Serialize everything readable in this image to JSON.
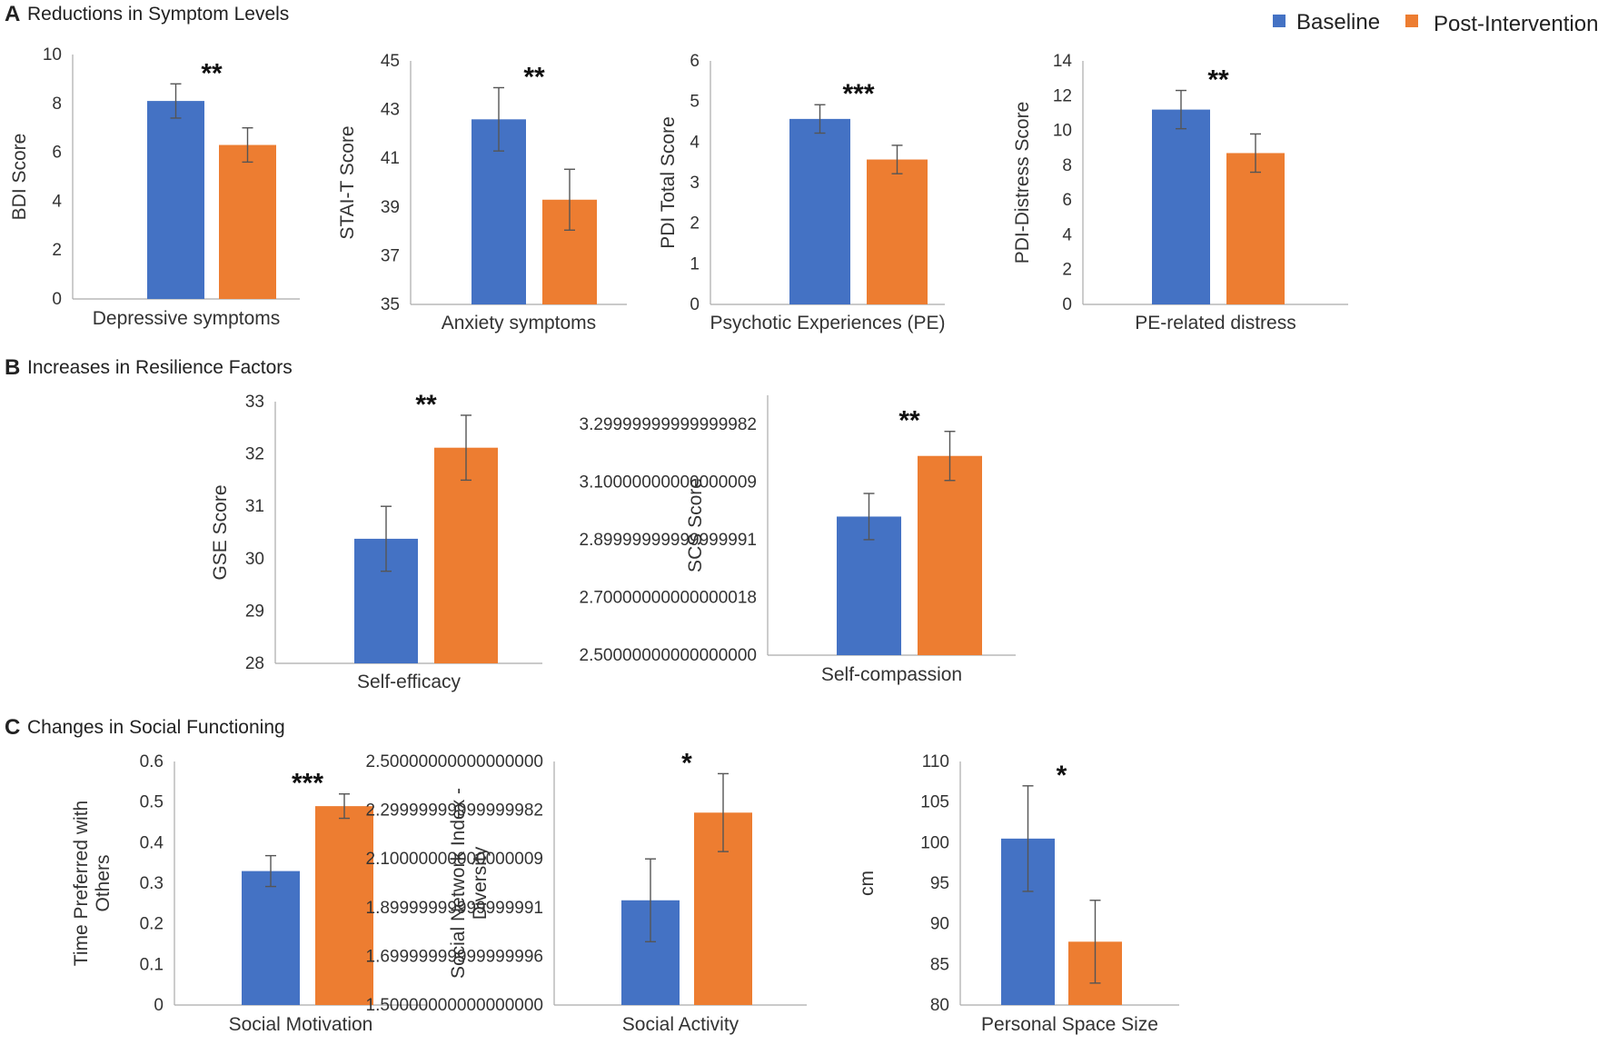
{
  "legend": {
    "baseline_label": "Baseline",
    "post_label": "Post-Intervention",
    "position": "top-right"
  },
  "colors": {
    "baseline": "#4472C4",
    "post": "#ED7D31",
    "axis": "#aaaaaa",
    "errorbar": "#555555",
    "text": "#222222"
  },
  "sections": [
    {
      "letter": "A",
      "title": "Reductions in Symptom Levels"
    },
    {
      "letter": "B",
      "title": "Increases in Resilience Factors"
    },
    {
      "letter": "C",
      "title": "Changes in Social Functioning"
    }
  ],
  "chart_data": [
    {
      "type": "bar",
      "section": "A",
      "xlabel": "Depressive symptoms",
      "ylabel": "BDI Score",
      "ylim": [
        0,
        10
      ],
      "ticks": [
        0,
        2,
        4,
        6,
        8,
        10
      ],
      "series": [
        {
          "name": "Baseline",
          "value": 8.1,
          "error": 0.7
        },
        {
          "name": "Post-Intervention",
          "value": 6.3,
          "error": 0.7
        }
      ],
      "significance": "**"
    },
    {
      "type": "bar",
      "section": "A",
      "xlabel": "Anxiety symptoms",
      "ylabel": "STAI-T Score",
      "ylim": [
        35,
        45
      ],
      "ticks": [
        35,
        37,
        39,
        41,
        43,
        45
      ],
      "series": [
        {
          "name": "Baseline",
          "value": 42.6,
          "error": 1.3
        },
        {
          "name": "Post-Intervention",
          "value": 39.3,
          "error": 1.25
        }
      ],
      "significance": "**"
    },
    {
      "type": "bar",
      "section": "A",
      "xlabel": "Psychotic Experiences (PE)",
      "ylabel": "PDI Total Score",
      "ylim": [
        0,
        6
      ],
      "ticks": [
        0,
        1,
        2,
        3,
        4,
        5,
        6
      ],
      "series": [
        {
          "name": "Baseline",
          "value": 4.57,
          "error": 0.35
        },
        {
          "name": "Post-Intervention",
          "value": 3.57,
          "error": 0.35
        }
      ],
      "significance": "***"
    },
    {
      "type": "bar",
      "section": "A",
      "xlabel": "PE-related distress",
      "ylabel": "PDI-Distress Score",
      "ylim": [
        0,
        14
      ],
      "ticks": [
        0,
        2,
        4,
        6,
        8,
        10,
        12,
        14
      ],
      "series": [
        {
          "name": "Baseline",
          "value": 11.2,
          "error": 1.1
        },
        {
          "name": "Post-Intervention",
          "value": 8.7,
          "error": 1.1
        }
      ],
      "significance": "**"
    },
    {
      "type": "bar",
      "section": "B",
      "xlabel": "Self-efficacy",
      "ylabel": "GSE Score",
      "ylim": [
        28,
        33
      ],
      "ticks": [
        28,
        29,
        30,
        31,
        32,
        33
      ],
      "series": [
        {
          "name": "Baseline",
          "value": 30.38,
          "error": 0.62
        },
        {
          "name": "Post-Intervention",
          "value": 32.12,
          "error": 0.62
        }
      ],
      "significance": "**"
    },
    {
      "type": "bar",
      "section": "B",
      "xlabel": "Self-compassion",
      "ylabel": "SCS Score",
      "ylim": [
        2.5,
        3.4
      ],
      "ticks": [
        2.5,
        2.7,
        2.9,
        3.1,
        3.3
      ],
      "series": [
        {
          "name": "Baseline",
          "value": 2.98,
          "error": 0.08
        },
        {
          "name": "Post-Intervention",
          "value": 3.19,
          "error": 0.085
        }
      ],
      "significance": "**"
    },
    {
      "type": "bar",
      "section": "C",
      "xlabel": "Social Motivation",
      "ylabel": "Time Preferred with Others",
      "ylim": [
        0,
        0.6
      ],
      "ticks": [
        0,
        0.1,
        0.2,
        0.3,
        0.4,
        0.5,
        0.6
      ],
      "series": [
        {
          "name": "Baseline",
          "value": 0.33,
          "error": 0.038
        },
        {
          "name": "Post-Intervention",
          "value": 0.49,
          "error": 0.03
        }
      ],
      "significance": "***"
    },
    {
      "type": "bar",
      "section": "C",
      "xlabel": "Social Activity",
      "ylabel": "Social Network Index - Diversity",
      "ylim": [
        1.5,
        2.5
      ],
      "ticks": [
        1.5,
        1.7,
        1.9,
        2.1,
        2.3,
        2.5
      ],
      "series": [
        {
          "name": "Baseline",
          "value": 1.93,
          "error": 0.17
        },
        {
          "name": "Post-Intervention",
          "value": 2.29,
          "error": 0.16
        }
      ],
      "significance": "*"
    },
    {
      "type": "bar",
      "section": "C",
      "xlabel": "Personal Space Size",
      "ylabel": "cm",
      "ylim": [
        80,
        110
      ],
      "ticks": [
        80,
        85,
        90,
        95,
        100,
        105,
        110
      ],
      "series": [
        {
          "name": "Baseline",
          "value": 100.5,
          "error": 6.5
        },
        {
          "name": "Post-Intervention",
          "value": 87.8,
          "error": 5.1
        }
      ],
      "significance": "*"
    }
  ]
}
